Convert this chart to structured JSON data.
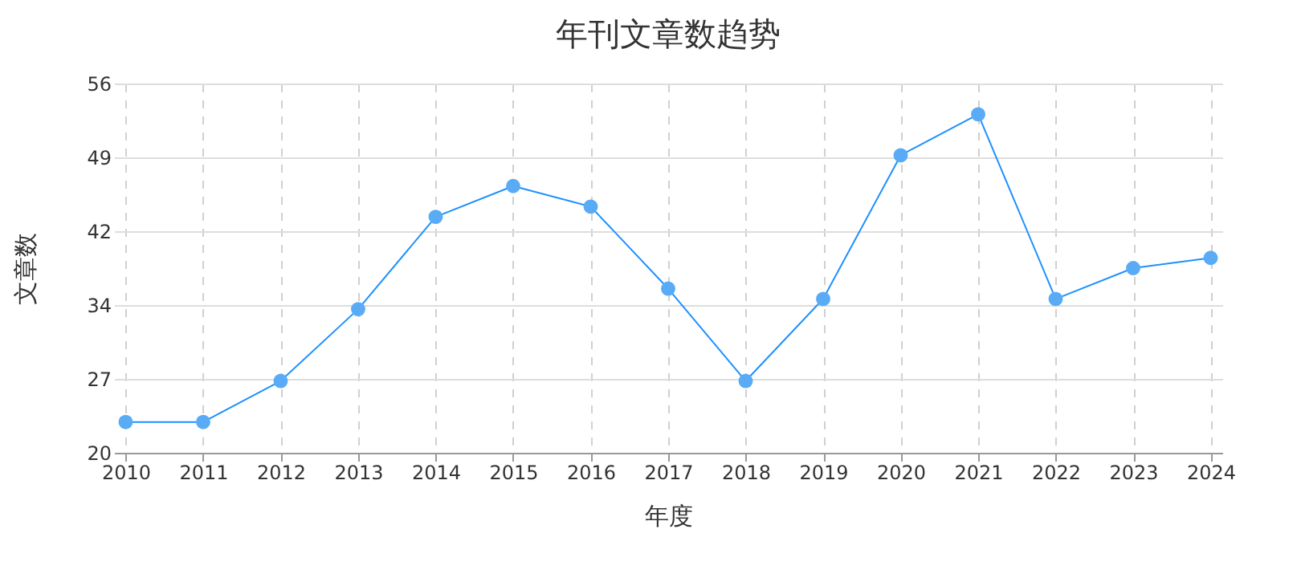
{
  "chart_data": {
    "type": "line",
    "title": "年刊文章数趋势",
    "xlabel": "年度",
    "ylabel": "文章数",
    "categories": [
      "2010",
      "2011",
      "2012",
      "2013",
      "2014",
      "2015",
      "2016",
      "2017",
      "2018",
      "2019",
      "2020",
      "2021",
      "2022",
      "2023",
      "2024"
    ],
    "series": [
      {
        "color": "#1e90ff",
        "values": [
          23,
          23,
          27,
          34,
          43,
          46,
          44,
          36,
          27,
          35,
          49,
          53,
          35,
          38,
          39
        ]
      }
    ],
    "ylim": [
      20,
      56
    ],
    "yticks": [
      20,
      {
        "value": 27.2,
        "label": "27"
      },
      {
        "value": 34.4,
        "label": "34"
      },
      {
        "value": 41.6,
        "label": "42"
      },
      {
        "value": 48.8,
        "label": "49"
      },
      56
    ],
    "grid": true,
    "marker": "circle",
    "line_style": "solid"
  }
}
